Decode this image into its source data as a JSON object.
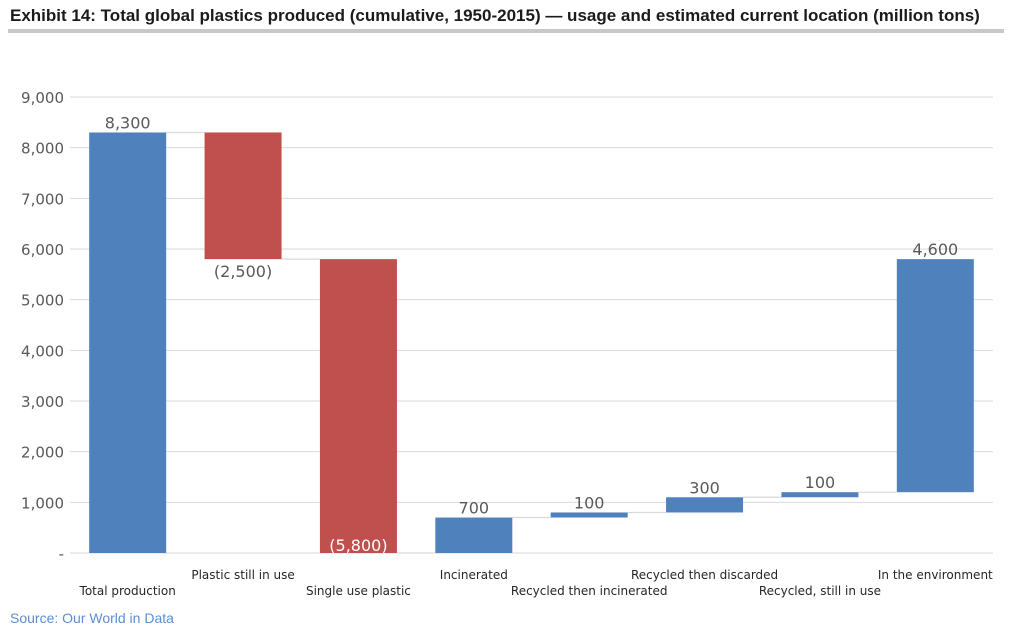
{
  "title": "Exhibit 14: Total global plastics produced (cumulative, 1950-2015) — usage and estimated current location (million tons)",
  "source": "Source: Our World in Data",
  "colors": {
    "positive": "#4f81bd",
    "negative": "#c0504d",
    "grid": "#d9d9d9",
    "axis_text": "#595959"
  },
  "chart_data": {
    "type": "bar",
    "subtype": "waterfall",
    "categories": [
      "Total production",
      "Plastic still in use",
      "Single use plastic",
      "Incinerated",
      "Recycled then incinerated",
      "Recycled then discarded",
      "Recycled, still in use",
      "In the environment"
    ],
    "bars": [
      {
        "category": "Total production",
        "start": 0,
        "end": 8300,
        "label": "8,300",
        "sign": "positive"
      },
      {
        "category": "Plastic still in use",
        "start": 5800,
        "end": 8300,
        "label": "(2,500)",
        "sign": "negative"
      },
      {
        "category": "Single use plastic",
        "start": 0,
        "end": 5800,
        "label": "(5,800)",
        "sign": "negative"
      },
      {
        "category": "Incinerated",
        "start": 0,
        "end": 700,
        "label": "700",
        "sign": "positive"
      },
      {
        "category": "Recycled then incinerated",
        "start": 700,
        "end": 800,
        "label": "100",
        "sign": "positive"
      },
      {
        "category": "Recycled then discarded",
        "start": 800,
        "end": 1100,
        "label": "300",
        "sign": "positive"
      },
      {
        "category": "Recycled, still in use",
        "start": 1100,
        "end": 1200,
        "label": "100",
        "sign": "positive"
      },
      {
        "category": "In the environment",
        "start": 1200,
        "end": 5800,
        "label": "4,600",
        "sign": "positive"
      }
    ],
    "ylim": [
      0,
      9000
    ],
    "yticks": [
      0,
      1000,
      2000,
      3000,
      4000,
      5000,
      6000,
      7000,
      8000,
      9000
    ],
    "ytick_labels": [
      "-",
      "1,000",
      "2,000",
      "3,000",
      "4,000",
      "5,000",
      "6,000",
      "7,000",
      "8,000",
      "9,000"
    ],
    "grid": true,
    "legend": "none"
  }
}
